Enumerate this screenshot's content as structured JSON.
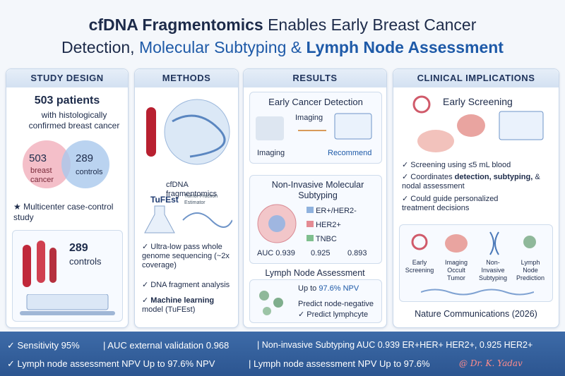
{
  "header": {
    "title_bold": "cfDNA Fragmentomics",
    "title_rest": "Enables Early Breast Cancer",
    "line2_a": "Detection,",
    "line2_b": "Molecular Subtyping &",
    "line2_c": "Lymph Node Assessment"
  },
  "study_design": {
    "heading": "STUDY DESIGN",
    "patients": "503 patients",
    "patients_desc": "with histologically confirmed breast cancer",
    "venn_left_num": "503",
    "venn_left_label": "breast cancer",
    "venn_right_num": "289",
    "venn_right_label": "controls",
    "bullet": "Multicenter case-control study",
    "box_num": "289",
    "box_label": "controls"
  },
  "methods": {
    "heading": "METHODS",
    "label": "cfDNA fragmentomics",
    "tufest": "TuFEst",
    "tufest_sub": "Tumor Fraction Estimator",
    "bullets": [
      "Ultra-low pass whole genome sequencing (~2x coverage)",
      "DNA fragment analysis"
    ],
    "ml_bold": "Machine learning",
    "ml_rest": "model (TuFEst)"
  },
  "results": {
    "heading": "RESULTS",
    "early_title": "Early Cancer Detection",
    "imaging_top": "Imaging",
    "imaging_left": "Imaging",
    "recommend": "Recommend",
    "subtyping_title": "Non-Invasive Molecular Subtyping",
    "legend": [
      "ER+/HER2-",
      "HER2+",
      "TNBC"
    ],
    "auc_label": "AUC",
    "auc_values": [
      "0.939",
      "0.925",
      "0.893"
    ],
    "lymph_title": "Lymph Node Assessment",
    "npv_prefix": "Up to",
    "npv": "97.6% NPV",
    "lymph_items": [
      "Predict node-negative",
      "Predict lymphcyte"
    ]
  },
  "clinical": {
    "heading": "CLINICAL IMPLICATIONS",
    "screening": "Early Screening",
    "b1": "Screening using ≤5 mL blood",
    "b2_a": "Coordinates",
    "b2_b": "detection, subtyping,",
    "b2_c": "& nodal assessment",
    "b3": "Could guide personalized treatment decisions",
    "icons": [
      "Early Screening",
      "Imaging Occult Tumor",
      "Non-Invasive Subtyping",
      "Lymph Node Prediction"
    ],
    "citation": "Nature Communications (2026)"
  },
  "footer": {
    "row1": [
      "Sensitivity 95%",
      "AUC external validation 0.968",
      "Non-invasive Subtyping AUC 0.939 ER+HER+ HER2+, 0.925 HER2+"
    ],
    "row2": [
      "Lymph node assessment NPV Up to 97.6% NPV",
      "Lymph node assessment NPV Up to 97.6%"
    ],
    "signature": "@ Dr. K. Yadav"
  }
}
